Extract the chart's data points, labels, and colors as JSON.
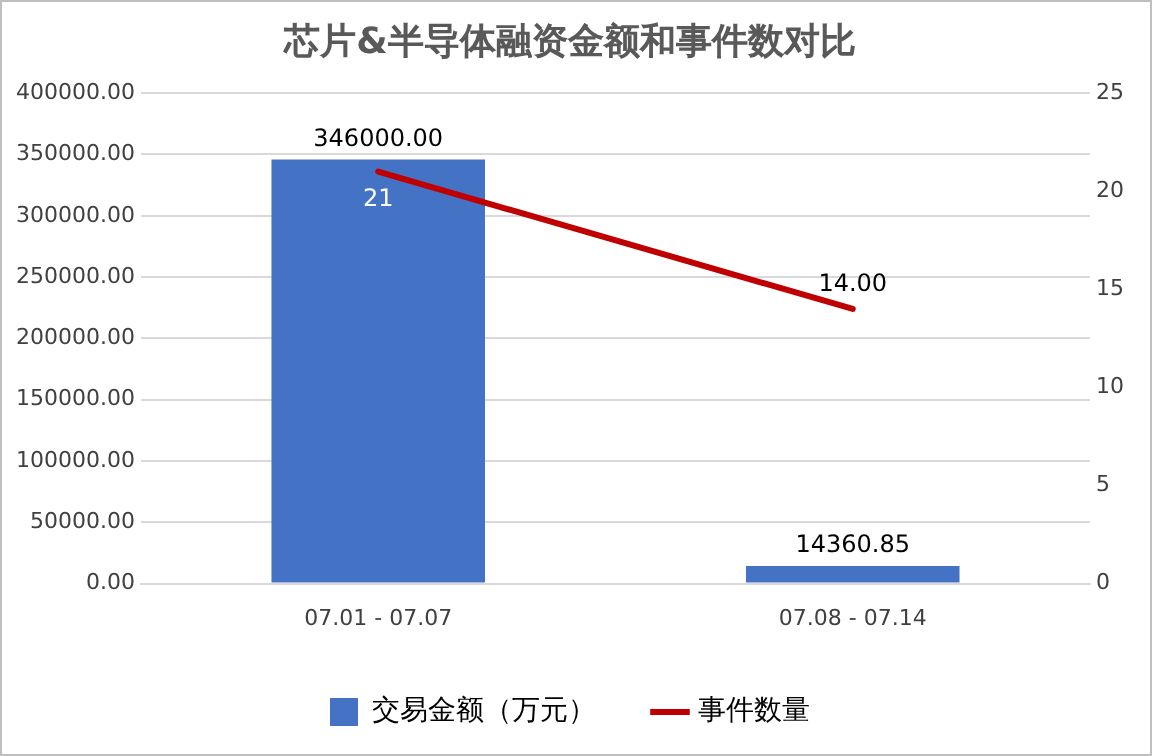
{
  "chart_data": {
    "type": "bar",
    "title": "芯片&半导体融资金额和事件数对比",
    "categories": [
      "07.01 - 07.07",
      "07.08 - 07.14"
    ],
    "series": [
      {
        "name": "交易金额（万元）",
        "color": "#4472c4",
        "values": [
          346000,
          14360.85
        ],
        "value_labels": [
          "346000.00",
          "14360.85"
        ]
      },
      {
        "name": "事件数量",
        "type": "line",
        "axis": "y2",
        "color": "#c00000",
        "values": [
          21,
          14
        ],
        "value_labels": [
          "21",
          "14.00"
        ]
      }
    ],
    "ylim": [
      0,
      400000
    ],
    "yticks": [
      {
        "value": 0,
        "label": "0.00"
      },
      {
        "value": 50000,
        "label": "50000.00"
      },
      {
        "value": 100000,
        "label": "100000.00"
      },
      {
        "value": 150000,
        "label": "150000.00"
      },
      {
        "value": 200000,
        "label": "200000.00"
      },
      {
        "value": 250000,
        "label": "250000.00"
      },
      {
        "value": 300000,
        "label": "300000.00"
      },
      {
        "value": 350000,
        "label": "350000.00"
      },
      {
        "value": 400000,
        "label": "400000.00"
      }
    ],
    "y2lim": [
      0,
      25
    ],
    "y2ticks": [
      0,
      5,
      10,
      15,
      20,
      25
    ],
    "grid": "y",
    "legend": "bottom"
  }
}
